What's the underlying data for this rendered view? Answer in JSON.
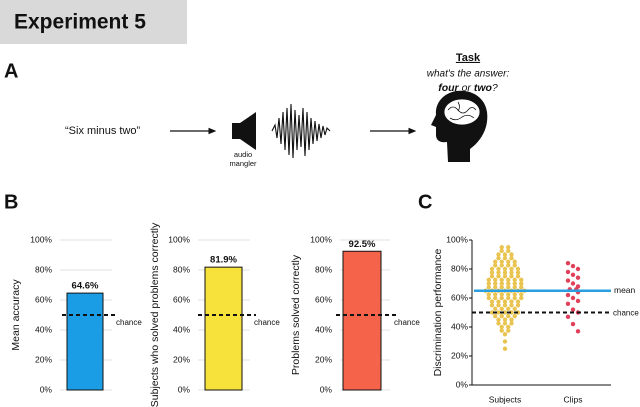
{
  "header": {
    "title": "Experiment 5"
  },
  "panel_a": {
    "label": "A",
    "phrase": "“Six minus two”",
    "speaker_label": "audio mangler",
    "task_title": "Task",
    "task_question": "what's the answer:",
    "task_option_1": "four",
    "task_connector": "or",
    "task_option_2": "two",
    "task_end": "?"
  },
  "chart_data": [
    {
      "type": "bar",
      "panel_label": "B",
      "ylabel": "Mean accuracy",
      "values": [
        64.6
      ],
      "value_labels": [
        "64.6%"
      ],
      "color": "#1b9de6",
      "ylim": [
        0,
        100
      ],
      "yticks": [
        {
          "value": 0,
          "label": "0%"
        },
        {
          "value": 20,
          "label": "20%"
        },
        {
          "value": 40,
          "label": "40%"
        },
        {
          "value": 60,
          "label": "60%"
        },
        {
          "value": 80,
          "label": "80%"
        },
        {
          "value": 100,
          "label": "100%"
        }
      ],
      "grid": true,
      "reference_line": {
        "value": 50,
        "label": "chance"
      }
    },
    {
      "type": "bar",
      "ylabel": "Subjects who solved problems correctly",
      "values": [
        81.9
      ],
      "value_labels": [
        "81.9%"
      ],
      "color": "#f7e23b",
      "ylim": [
        0,
        100
      ],
      "yticks": [
        {
          "value": 0,
          "label": "0%"
        },
        {
          "value": 20,
          "label": "20%"
        },
        {
          "value": 40,
          "label": "40%"
        },
        {
          "value": 60,
          "label": "60%"
        },
        {
          "value": 80,
          "label": "80%"
        },
        {
          "value": 100,
          "label": "100%"
        }
      ],
      "grid": true,
      "reference_line": {
        "value": 50,
        "label": "chance"
      }
    },
    {
      "type": "bar",
      "ylabel": "Problems solved correctly",
      "values": [
        92.5
      ],
      "value_labels": [
        "92.5%"
      ],
      "color": "#f5644a",
      "ylim": [
        0,
        100
      ],
      "yticks": [
        {
          "value": 0,
          "label": "0%"
        },
        {
          "value": 20,
          "label": "20%"
        },
        {
          "value": 40,
          "label": "40%"
        },
        {
          "value": 60,
          "label": "60%"
        },
        {
          "value": 80,
          "label": "80%"
        },
        {
          "value": 100,
          "label": "100%"
        }
      ],
      "grid": true,
      "reference_line": {
        "value": 50,
        "label": "chance"
      }
    },
    {
      "type": "strip",
      "panel_label": "C",
      "ylabel": "Discrimination performance",
      "categories": [
        "Subjects",
        "Clips"
      ],
      "series": [
        {
          "color": "#e9c451",
          "values": [
            95,
            95,
            92.5,
            92.5,
            90,
            90,
            90,
            87.5,
            87.5,
            87.5,
            85,
            85,
            85,
            85,
            82.5,
            82.5,
            82.5,
            82.5,
            80,
            80,
            80,
            80,
            80,
            77.5,
            77.5,
            77.5,
            77.5,
            77.5,
            75,
            75,
            75,
            75,
            75,
            72.5,
            72.5,
            72.5,
            72.5,
            72.5,
            72.5,
            70,
            70,
            70,
            70,
            70,
            70,
            67.5,
            67.5,
            67.5,
            67.5,
            67.5,
            67.5,
            65,
            65,
            65,
            65,
            65,
            65,
            65,
            62.5,
            62.5,
            62.5,
            62.5,
            62.5,
            62.5,
            60,
            60,
            60,
            60,
            60,
            60,
            57.5,
            57.5,
            57.5,
            57.5,
            57.5,
            55,
            55,
            55,
            55,
            55,
            52.5,
            52.5,
            52.5,
            52.5,
            50,
            50,
            50,
            50,
            50,
            47.5,
            47.5,
            47.5,
            47.5,
            45,
            45,
            45,
            42.5,
            42.5,
            42.5,
            40,
            40,
            37.5,
            37.5,
            35,
            30,
            25
          ]
        },
        {
          "color": "#e0405a",
          "values": [
            84,
            82,
            80,
            78,
            76,
            74,
            72,
            70,
            68,
            66,
            66,
            64,
            62,
            60,
            58,
            56,
            52,
            50,
            47,
            42,
            37
          ]
        }
      ],
      "ylim": [
        0,
        100
      ],
      "yticks": [
        {
          "value": 0,
          "label": "0%"
        },
        {
          "value": 20,
          "label": "20%"
        },
        {
          "value": 40,
          "label": "40%"
        },
        {
          "value": 60,
          "label": "60%"
        },
        {
          "value": 80,
          "label": "80%"
        },
        {
          "value": 100,
          "label": "100%"
        }
      ],
      "mean_line": {
        "value": 65,
        "label": "mean",
        "color": "#2a9fe0"
      },
      "reference_line": {
        "value": 50,
        "label": "chance"
      }
    }
  ]
}
